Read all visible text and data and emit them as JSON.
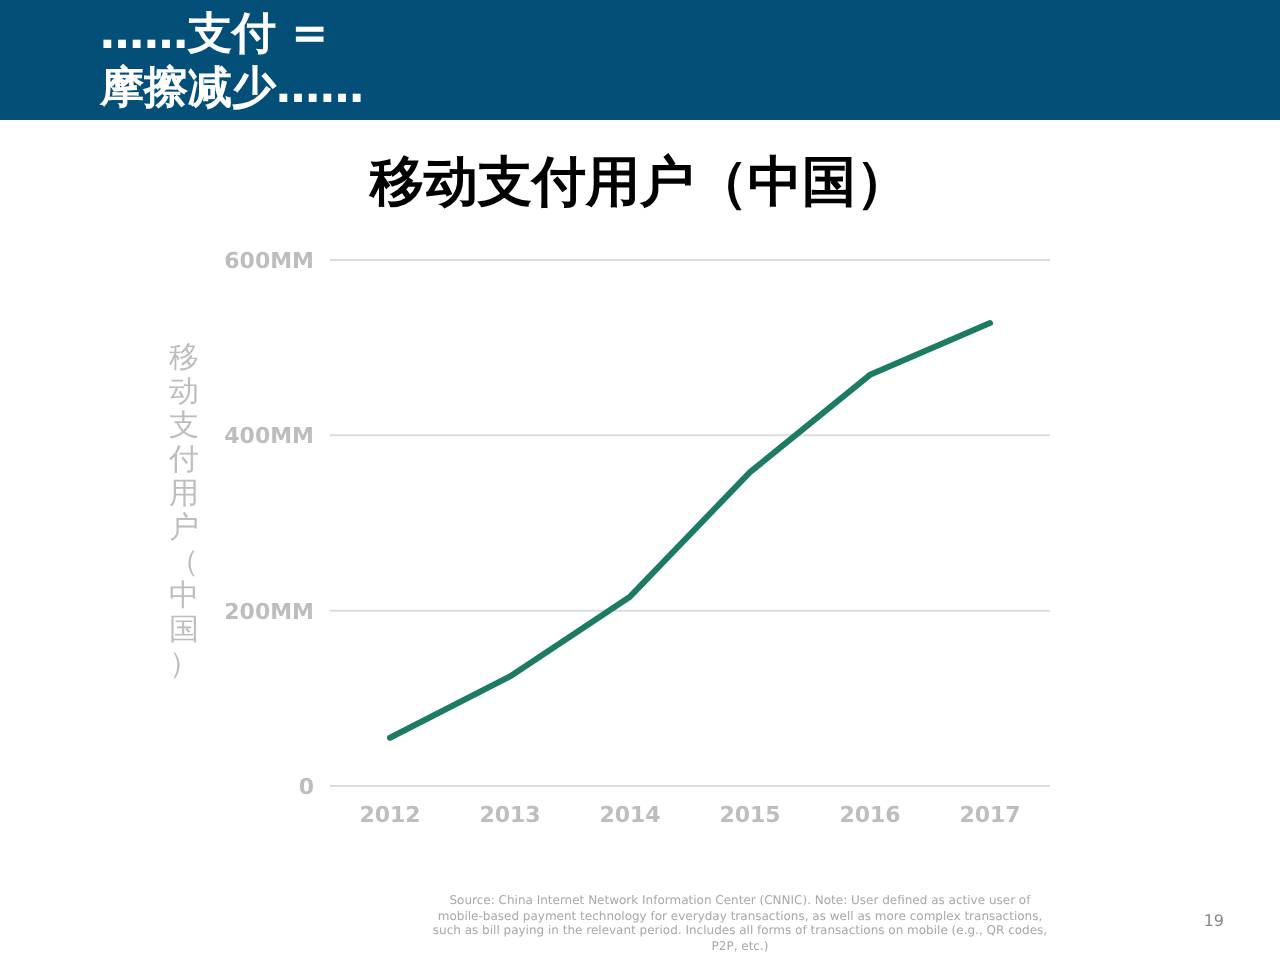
{
  "chart_data": {
    "type": "line",
    "title": "移动支付用户（中国）",
    "ylabel": "移动支付用户（中国）",
    "categories": [
      "2012",
      "2013",
      "2014",
      "2015",
      "2016",
      "2017"
    ],
    "series": [
      {
        "color": "#1e7b63",
        "values": [
          55,
          125,
          216,
          358,
          469,
          528
        ]
      }
    ],
    "ylim": [
      0,
      600
    ],
    "yticks": [
      {
        "value": 0,
        "label": "0"
      },
      {
        "value": 200,
        "label": "200MM"
      },
      {
        "value": 400,
        "label": "400MM"
      },
      {
        "value": 600,
        "label": "600MM"
      }
    ],
    "grid": "y",
    "marker": "none",
    "line_style": "solid",
    "annotations": [
      "……支付 =\n摩擦减少……",
      "Source: China Internet Network Information Center (CNNIC).  Note: User defined as active user of mobile-based payment technology for everyday transactions, as well as more complex transactions, such as bill paying in the relevant period. Includes all forms of transactions on mobile (e.g., QR codes, P2P, etc.)",
      "19"
    ]
  }
}
